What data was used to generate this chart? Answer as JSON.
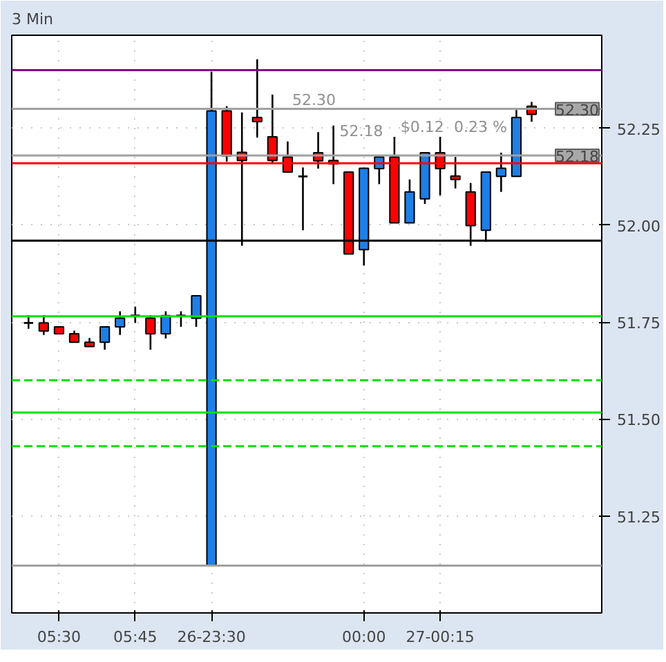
{
  "chart_data": {
    "type": "candlestick",
    "title": "3 Min",
    "categories": [
      null,
      null,
      "05:30",
      null,
      null,
      null,
      null,
      "05:45",
      null,
      null,
      null,
      null,
      "26-23:30",
      null,
      null,
      null,
      null,
      null,
      null,
      null,
      null,
      null,
      "00:00",
      null,
      null,
      null,
      null,
      "27-00:15",
      null,
      null,
      null,
      null,
      null,
      null
    ],
    "ohlc": [
      [
        51.748,
        51.768,
        51.733,
        51.748
      ],
      [
        51.748,
        51.768,
        51.717,
        51.727
      ],
      [
        51.738,
        51.738,
        51.72,
        51.72
      ],
      [
        51.72,
        51.728,
        51.698,
        51.698
      ],
      [
        51.698,
        51.709,
        51.687,
        51.687
      ],
      [
        51.698,
        51.738,
        51.679,
        51.738
      ],
      [
        51.738,
        51.778,
        51.717,
        51.76
      ],
      [
        51.767,
        51.79,
        51.748,
        51.767
      ],
      [
        51.76,
        51.768,
        51.679,
        51.72
      ],
      [
        51.72,
        51.778,
        51.708,
        51.767
      ],
      [
        51.767,
        51.778,
        51.738,
        51.767
      ],
      [
        51.76,
        51.818,
        51.738,
        51.818
      ],
      [
        51.123,
        52.396,
        51.123,
        52.295
      ],
      [
        52.295,
        52.307,
        52.164,
        52.179
      ],
      [
        52.188,
        52.291,
        51.947,
        52.167
      ],
      [
        52.278,
        52.428,
        52.226,
        52.267
      ],
      [
        52.228,
        52.337,
        52.158,
        52.167
      ],
      [
        52.176,
        52.216,
        52.137,
        52.137
      ],
      [
        52.126,
        52.149,
        51.987,
        52.126
      ],
      [
        52.187,
        52.24,
        52.146,
        52.166
      ],
      [
        52.167,
        52.257,
        52.106,
        52.158
      ],
      [
        52.137,
        52.137,
        51.926,
        51.926
      ],
      [
        51.937,
        52.147,
        51.896,
        52.147
      ],
      [
        52.146,
        52.176,
        52.106,
        52.176
      ],
      [
        52.176,
        52.228,
        52.006,
        52.006
      ],
      [
        52.006,
        52.118,
        52.006,
        52.086
      ],
      [
        52.068,
        52.187,
        52.055,
        52.187
      ],
      [
        52.187,
        52.228,
        52.077,
        52.146
      ],
      [
        52.127,
        52.176,
        52.095,
        52.118
      ],
      [
        52.086,
        52.109,
        51.947,
        51.999
      ],
      [
        51.987,
        52.137,
        51.957,
        52.137
      ],
      [
        52.126,
        52.187,
        52.086,
        52.147
      ],
      [
        52.126,
        52.297,
        52.126,
        52.278
      ],
      [
        52.307,
        52.318,
        52.267,
        52.286
      ]
    ],
    "colors": [
      "#000000",
      "#ff0000",
      "#ff0000",
      "#ff0000",
      "#ff0000",
      "#1e7fe6",
      "#1e7fe6",
      "#000000",
      "#ff0000",
      "#1e7fe6",
      "#000000",
      "#1e7fe6",
      "#1e7fe6",
      "#ff0000",
      "#ff0000",
      "#ff0000",
      "#ff0000",
      "#ff0000",
      "#000000",
      "#ff0000",
      "#ff0000",
      "#ff0000",
      "#1e7fe6",
      "#1e7fe6",
      "#ff0000",
      "#1e7fe6",
      "#1e7fe6",
      "#ff0000",
      "#ff0000",
      "#ff0000",
      "#1e7fe6",
      "#1e7fe6",
      "#1e7fe6",
      "#ff0000"
    ],
    "ylim": [
      51.0,
      52.49
    ],
    "yticks": [
      {
        "value": 51.25,
        "label": "51.25"
      },
      {
        "value": 51.5,
        "label": "51.50"
      },
      {
        "value": 51.75,
        "label": "51.75"
      },
      {
        "value": 52.0,
        "label": "52.00"
      },
      {
        "value": 52.25,
        "label": "52.25"
      }
    ],
    "grid": true,
    "ref_lines": [
      {
        "axis": "y",
        "value": 52.4,
        "color": "#800080"
      },
      {
        "axis": "y",
        "value": 52.16,
        "color": "#ff0000"
      },
      {
        "axis": "y",
        "value": 51.96,
        "color": "#000000"
      },
      {
        "axis": "y",
        "value": 51.765,
        "color": "#00e000"
      },
      {
        "axis": "y",
        "value": 51.6,
        "color": "#00e000",
        "line_style": "dashed"
      },
      {
        "axis": "y",
        "value": 51.517,
        "color": "#00e000"
      },
      {
        "axis": "y",
        "value": 51.43,
        "color": "#00e000",
        "line_style": "dashed"
      },
      {
        "axis": "y",
        "value": 51.122,
        "color": "#a0a0a0"
      },
      {
        "axis": "y",
        "value": 52.3,
        "color": "#a0a0a0",
        "label": "52.30"
      },
      {
        "axis": "y",
        "value": 52.18,
        "color": "#a0a0a0",
        "label": "52.18"
      }
    ],
    "annotations": [
      {
        "text": "52.30",
        "y": 52.3
      },
      {
        "text": "52.18",
        "y": 52.18
      },
      {
        "text": "$0.12",
        "y": 52.18
      },
      {
        "text": "0.23 %",
        "y": 52.18
      }
    ]
  }
}
